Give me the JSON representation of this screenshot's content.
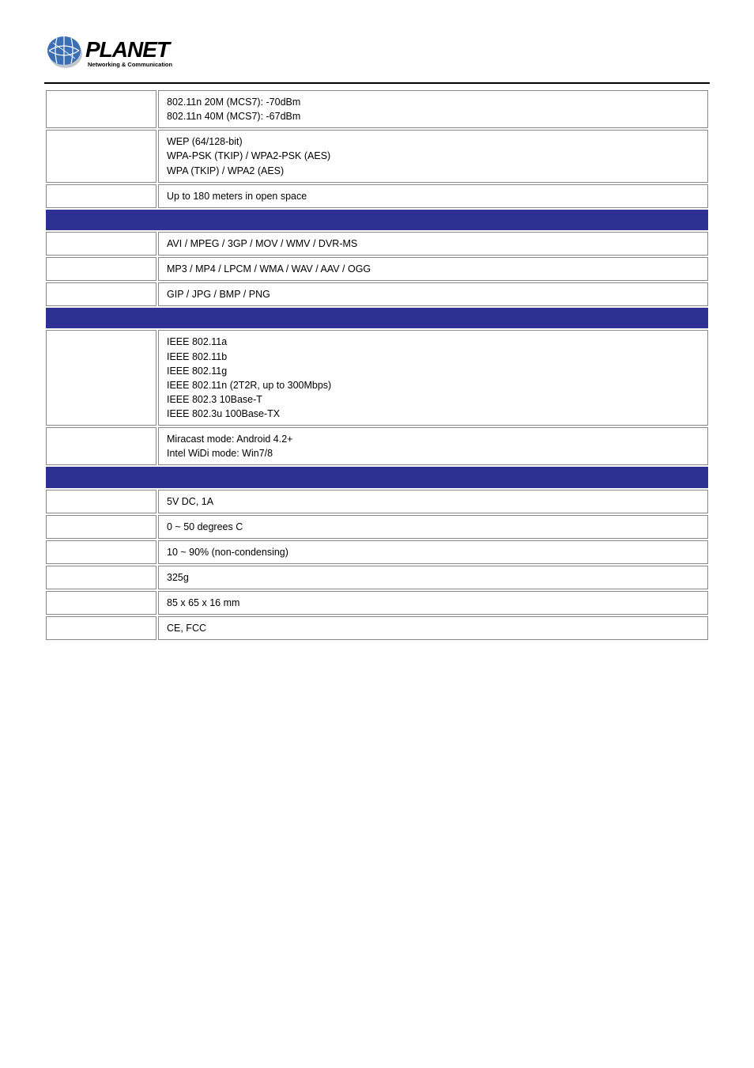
{
  "logo": {
    "brand_text": "PLANET",
    "tagline": "Networking & Communication",
    "globe_color": "#3b6fb5",
    "globe_shadow": "#bfc7cc",
    "text_color": "#000000"
  },
  "table": {
    "rows": [
      {
        "type": "data",
        "value": "802.11n 20M (MCS7): -70dBm\n802.11n 40M (MCS7): -67dBm\n "
      },
      {
        "type": "data",
        "value": "WEP (64/128-bit)\nWPA-PSK (TKIP) / WPA2-PSK (AES)\nWPA (TKIP) / WPA2 (AES)"
      },
      {
        "type": "data",
        "value": "Up to 180 meters in open space"
      },
      {
        "type": "header"
      },
      {
        "type": "data",
        "value": "AVI / MPEG / 3GP / MOV / WMV / DVR-MS"
      },
      {
        "type": "data",
        "value": "MP3 / MP4 / LPCM / WMA / WAV / AAV / OGG"
      },
      {
        "type": "data",
        "value": "GIP / JPG / BMP / PNG"
      },
      {
        "type": "header"
      },
      {
        "type": "data",
        "value": "IEEE 802.11a\nIEEE 802.11b\nIEEE 802.11g\nIEEE 802.11n (2T2R, up to 300Mbps)\nIEEE 802.3 10Base-T\nIEEE 802.3u 100Base-TX"
      },
      {
        "type": "data",
        "value": "Miracast mode: Android 4.2+\nIntel WiDi mode: Win7/8"
      },
      {
        "type": "header"
      },
      {
        "type": "data",
        "value": "5V DC, 1A"
      },
      {
        "type": "data",
        "value": "0 ~ 50 degrees C"
      },
      {
        "type": "data",
        "value": "10 ~ 90% (non-condensing)"
      },
      {
        "type": "data",
        "value": "325g"
      },
      {
        "type": "data",
        "value": "85 x 65 x 16 mm"
      },
      {
        "type": "data",
        "value": "CE, FCC"
      }
    ]
  }
}
